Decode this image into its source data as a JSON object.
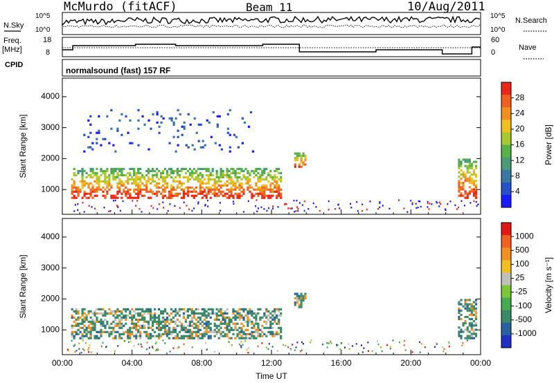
{
  "header": {
    "station": "McMurdo (fitACF)",
    "beam": "Beam 11",
    "date": "10/Aug/2011"
  },
  "status_panels": {
    "nsky_label": "N.Sky",
    "nsearch_label": "N.Search",
    "noise_ticks": [
      "10^5",
      "10^0"
    ],
    "freq_label_1": "Freq.",
    "freq_label_2": "[MHz]",
    "freq_ticks": [
      "18",
      "8"
    ],
    "nave_label": "Nave",
    "nave_ticks": [
      "60",
      "0"
    ],
    "cpid_label": "CPID",
    "cpid_value": "normalsound (fast) 157 RF"
  },
  "chart_data": [
    {
      "type": "heatmap",
      "name": "power",
      "xlabel": "",
      "ylabel": "Slant Range [km]",
      "x_range_hours": [
        0,
        24
      ],
      "ylim": [
        200,
        4600
      ],
      "yticks": [
        "1000",
        "2000",
        "3000",
        "4000"
      ],
      "colorbar_label": "Power [dB]",
      "colorbar_ticks": [
        "4",
        "8",
        "12",
        "16",
        "20",
        "24",
        "28"
      ],
      "colorbar_colors": [
        "#1a1aff",
        "#2850c8",
        "#3a78a0",
        "#4a9a78",
        "#58b048",
        "#a8c830",
        "#f0c020",
        "#f09020",
        "#f06020",
        "#e82818"
      ],
      "echo_regions": [
        {
          "t0": 0.5,
          "t1": 12.6,
          "r0": 700,
          "r1": 1700,
          "level": "strong"
        },
        {
          "t0": 13.3,
          "t1": 14.0,
          "r0": 1700,
          "r1": 2200,
          "level": "moderate"
        },
        {
          "t0": 22.7,
          "t1": 23.8,
          "r0": 700,
          "r1": 2000,
          "level": "strong"
        },
        {
          "t0": 1.2,
          "t1": 11.0,
          "r0": 2200,
          "r1": 3600,
          "level": "weak"
        }
      ]
    },
    {
      "type": "heatmap",
      "name": "velocity",
      "xlabel": "Time UT",
      "ylabel": "Slant Range [km]",
      "x_range_hours": [
        0,
        24
      ],
      "xticks": [
        "00:00",
        "04:00",
        "08:00",
        "12:00",
        "16:00",
        "20:00",
        "00:00"
      ],
      "ylim": [
        200,
        4600
      ],
      "yticks": [
        "1000",
        "2000",
        "3000",
        "4000"
      ],
      "colorbar_label": "Velocity [m s⁻¹]",
      "colorbar_ticks": [
        "1000",
        "500",
        "100",
        "25",
        "-25",
        "-100",
        "-500",
        "-1000"
      ],
      "colorbar_colors": [
        "#2030c0",
        "#2a60a0",
        "#3a8a68",
        "#48aa50",
        "#7ac83a",
        "#c0c0b8",
        "#f0c020",
        "#f09020",
        "#f06020",
        "#e01818"
      ],
      "echo_regions": [
        {
          "t0": 0.5,
          "t1": 12.6,
          "r0": 700,
          "r1": 1700,
          "level": "mixed"
        },
        {
          "t0": 13.3,
          "t1": 14.0,
          "r0": 1700,
          "r1": 2200,
          "level": "mixed"
        },
        {
          "t0": 22.7,
          "t1": 23.8,
          "r0": 700,
          "r1": 2000,
          "level": "mixed"
        }
      ]
    }
  ]
}
